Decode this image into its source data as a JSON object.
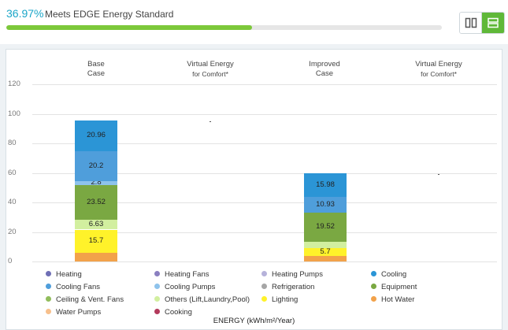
{
  "header": {
    "score_percent": "36.97%",
    "score_label": "Meets EDGE Energy Standard",
    "progress_value": 36.97,
    "progress_color": "#7cc83a",
    "view_toggle": {
      "columns_icon": "columns-icon",
      "rows_icon": "rows-icon",
      "active": "rows"
    }
  },
  "chart_data": {
    "type": "bar",
    "stacked": true,
    "column_headers": [
      {
        "line1": "Base",
        "line2": "Case"
      },
      {
        "line1": "Virtual Energy",
        "line2": "for Comfort*"
      },
      {
        "line1": "Improved",
        "line2": "Case"
      },
      {
        "line1": "Virtual Energy",
        "line2": "for Comfort*"
      }
    ],
    "xlabel": "ENERGY (kWh/m²/Year)",
    "ylim": [
      0,
      120
    ],
    "yticks": [
      "0",
      "20",
      "40",
      "60",
      "80",
      "100",
      "120"
    ],
    "series_colors": {
      "Heating": "#6f6fb5",
      "Heating Fans": "#8a7fc0",
      "Heating Pumps": "#b6b2da",
      "Cooling": "#2b95d6",
      "Cooling Fans": "#4f9edb",
      "Cooling Pumps": "#8ec3ec",
      "Refrigeration": "#a6a6a6",
      "Equipment": "#7aa842",
      "Ceiling & Vent. Fans": "#91bd5c",
      "Others (Lift,Laundry,Pool)": "#d2ef9f",
      "Lighting": "#fff22a",
      "Hot Water": "#f2a24a",
      "Water Pumps": "#f7c08c",
      "Cooking": "#b33a5c"
    },
    "bars": [
      {
        "name": "Base Case",
        "segments": [
          {
            "series": "Hot Water",
            "value": 5.9,
            "label": ""
          },
          {
            "series": "Lighting",
            "value": 15.7,
            "label": "15.7"
          },
          {
            "series": "Others (Lift,Laundry,Pool)",
            "value": 6.63,
            "label": "6.63"
          },
          {
            "series": "Equipment",
            "value": 23.52,
            "label": "23.52"
          },
          {
            "series": "Cooling Pumps",
            "value": 2.8,
            "label": "2.8"
          },
          {
            "series": "Cooling Fans",
            "value": 20.2,
            "label": "20.2"
          },
          {
            "series": "Cooling",
            "value": 20.96,
            "label": "20.96"
          }
        ]
      },
      {
        "name": "Virtual Energy for Comfort* (Base)",
        "comfort_value": 94.7
      },
      {
        "name": "Improved Case",
        "segments": [
          {
            "series": "Hot Water",
            "value": 3.6,
            "label": ""
          },
          {
            "series": "Lighting",
            "value": 5.7,
            "label": "5.7"
          },
          {
            "series": "Others (Lift,Laundry,Pool)",
            "value": 4.2,
            "label": ""
          },
          {
            "series": "Equipment",
            "value": 19.52,
            "label": "19.52"
          },
          {
            "series": "Cooling Fans",
            "value": 10.93,
            "label": "10.93"
          },
          {
            "series": "Cooling",
            "value": 15.98,
            "label": "15.98"
          }
        ]
      },
      {
        "name": "Virtual Energy for Comfort* (Improved)",
        "comfort_value": 59.2
      }
    ],
    "legend": [
      "Heating",
      "Heating Fans",
      "Heating Pumps",
      "Cooling",
      "Cooling Fans",
      "Cooling Pumps",
      "Refrigeration",
      "Equipment",
      "Ceiling & Vent. Fans",
      "Others (Lift,Laundry,Pool)",
      "Lighting",
      "Hot Water",
      "Water Pumps",
      "Cooking"
    ]
  }
}
